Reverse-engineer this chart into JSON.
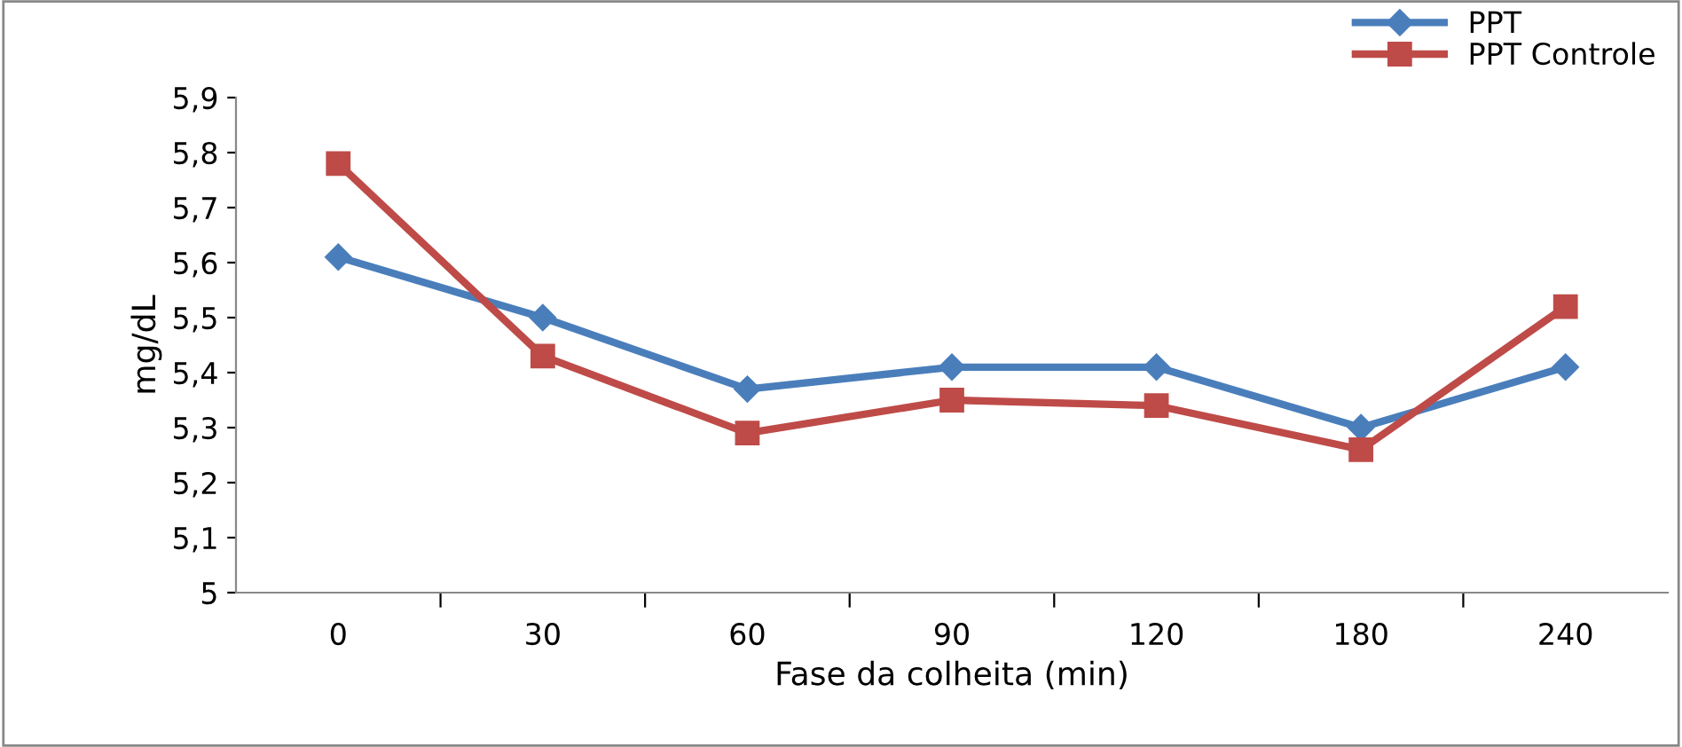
{
  "chart_data": {
    "type": "line",
    "xlabel": "Fase da colheita (min)",
    "ylabel": "mg/dL",
    "categories": [
      "0",
      "30",
      "60",
      "90",
      "120",
      "180",
      "240"
    ],
    "series": [
      {
        "name": "PPT",
        "color": "#4a7ebb",
        "marker": "diamond",
        "values": [
          5.61,
          5.5,
          5.37,
          5.41,
          5.41,
          5.3,
          5.41
        ]
      },
      {
        "name": "PPT Controle",
        "color": "#be4b48",
        "marker": "square",
        "values": [
          5.78,
          5.43,
          5.29,
          5.35,
          5.34,
          5.26,
          5.52
        ]
      }
    ],
    "ylim": [
      5,
      5.9
    ],
    "yticks": [
      5,
      {
        "value": 5.1,
        "label": "5,1"
      },
      {
        "value": 5.2,
        "label": "5,2"
      },
      {
        "value": 5.3,
        "label": "5,3"
      },
      {
        "value": 5.4,
        "label": "5,4"
      },
      {
        "value": 5.5,
        "label": "5,5"
      },
      {
        "value": 5.6,
        "label": "5,6"
      },
      {
        "value": 5.7,
        "label": "5,7"
      },
      {
        "value": 5.8,
        "label": "5,8"
      },
      {
        "value": 5.9,
        "label": "5,9"
      }
    ],
    "grid": false,
    "legend": "top right",
    "line_style": "solid"
  }
}
